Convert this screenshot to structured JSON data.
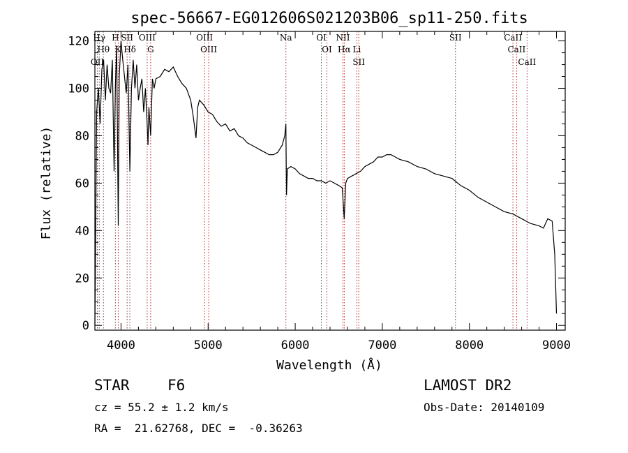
{
  "chart_data": {
    "type": "line",
    "title": "spec-56667-EG012606S021203B06_sp11-250.fits",
    "xlabel": "Wavelength (Å)",
    "ylabel": "Flux (relative)",
    "xlim": [
      3700,
      9100
    ],
    "ylim": [
      -2,
      124
    ],
    "xticks": [
      4000,
      5000,
      6000,
      7000,
      8000,
      9000
    ],
    "yticks": [
      0,
      20,
      40,
      60,
      80,
      100,
      120
    ],
    "grid": false,
    "series": [
      {
        "x": [
          3700,
          3720,
          3740,
          3760,
          3780,
          3800,
          3820,
          3840,
          3860,
          3880,
          3900,
          3920,
          3935,
          3950,
          3968,
          3980,
          4000,
          4020,
          4040,
          4060,
          4080,
          4101,
          4120,
          4140,
          4160,
          4180,
          4200,
          4220,
          4240,
          4260,
          4280,
          4300,
          4310,
          4320,
          4340,
          4360,
          4380,
          4400,
          4450,
          4500,
          4550,
          4600,
          4650,
          4700,
          4750,
          4800,
          4830,
          4861,
          4880,
          4900,
          4950,
          5000,
          5050,
          5100,
          5150,
          5200,
          5250,
          5300,
          5350,
          5400,
          5450,
          5500,
          5550,
          5600,
          5650,
          5700,
          5750,
          5800,
          5850,
          5880,
          5893,
          5900,
          5910,
          5950,
          6000,
          6050,
          6100,
          6150,
          6200,
          6250,
          6300,
          6350,
          6400,
          6450,
          6500,
          6540,
          6563,
          6580,
          6600,
          6650,
          6700,
          6750,
          6800,
          6850,
          6900,
          6950,
          7000,
          7050,
          7100,
          7150,
          7200,
          7300,
          7400,
          7500,
          7600,
          7700,
          7800,
          7900,
          8000,
          8100,
          8200,
          8300,
          8400,
          8500,
          8600,
          8700,
          8800,
          8850,
          8900,
          8950,
          8980,
          9000
        ],
        "y": [
          0,
          90,
          100,
          85,
          108,
          112,
          95,
          110,
          100,
          98,
          112,
          65,
          100,
          118,
          42,
          105,
          120,
          112,
          105,
          98,
          110,
          65,
          100,
          112,
          100,
          110,
          95,
          100,
          104,
          90,
          100,
          85,
          76,
          92,
          80,
          104,
          100,
          104,
          105,
          108,
          107,
          109,
          105,
          102,
          100,
          95,
          88,
          79,
          92,
          95,
          93,
          90,
          89,
          86,
          84,
          85,
          82,
          83,
          80,
          79,
          77,
          76,
          75,
          74,
          73,
          72,
          72,
          73,
          76,
          80,
          85,
          55,
          66,
          67,
          66,
          64,
          63,
          62,
          62,
          61,
          61,
          60,
          61,
          60,
          59,
          58,
          45,
          60,
          62,
          63,
          64,
          65,
          67,
          68,
          69,
          71,
          71,
          72,
          72,
          71,
          70,
          69,
          67,
          66,
          64,
          63,
          62,
          59,
          57,
          54,
          52,
          50,
          48,
          47,
          45,
          43,
          42,
          41,
          45,
          44,
          30,
          5
        ]
      }
    ],
    "lines": [
      {
        "label": "Hγ",
        "x": 3750
      },
      {
        "label": "Hθ",
        "x": 3798
      },
      {
        "label": "OII",
        "x": 3728
      },
      {
        "label": "H",
        "x": 3935
      },
      {
        "label": "K",
        "x": 3968
      },
      {
        "label": "SII",
        "x": 4070
      },
      {
        "label": "Hδ",
        "x": 4101
      },
      {
        "label": "OIII",
        "x": 4300
      },
      {
        "label": "G",
        "x": 4340
      },
      {
        "label": "OIII",
        "x": 4959
      },
      {
        "label": "OIII",
        "x": 5007
      },
      {
        "label": "Na",
        "x": 5893
      },
      {
        "label": "OI",
        "x": 6300
      },
      {
        "label": "OI",
        "x": 6364
      },
      {
        "label": "NII",
        "x": 6548
      },
      {
        "label": "Hα",
        "x": 6563
      },
      {
        "label": "Li",
        "x": 6708
      },
      {
        "label": "SII",
        "x": 6730
      },
      {
        "label": "SII",
        "x": 7840
      },
      {
        "label": "CaII",
        "x": 8500
      },
      {
        "label": "CaII",
        "x": 8542
      },
      {
        "label": "CaII",
        "x": 8662
      }
    ]
  },
  "info": {
    "class_label": "STAR",
    "subclass_label": "F6",
    "cz_label": "cz = 55.2 ± 1.2 km/s",
    "radec_label": "RA =  21.62768, DEC =  -0.36263",
    "survey_label": "LAMOST DR2",
    "obs_date_label": "Obs-Date: 20140109"
  },
  "colors": {
    "axis": "#000000",
    "spectrum": "#000000",
    "line_markers": "#a0282a"
  }
}
